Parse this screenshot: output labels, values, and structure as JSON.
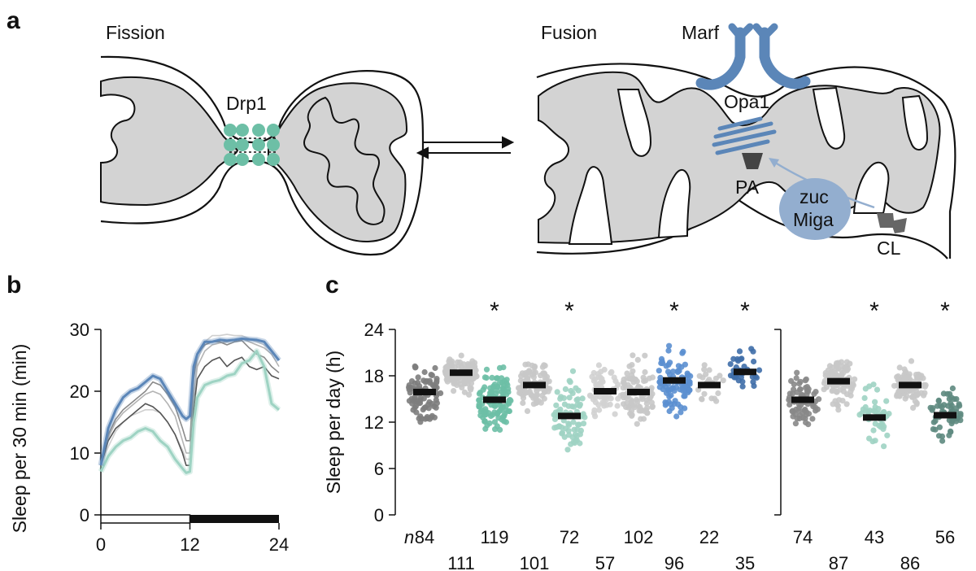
{
  "panel_a": {
    "letter": "a",
    "fission_label": "Fission",
    "fusion_label": "Fusion",
    "drp1_label": "Drp1",
    "marf_label": "Marf",
    "opa1_label": "Opa1",
    "pa_label": "PA",
    "zuc_label": "zuc",
    "miga_label": "Miga",
    "cl_label": "CL",
    "colors": {
      "drp1": "#6dbfa6",
      "marf": "#5b86b8",
      "miga": "#93aecf",
      "lipid": "#444444",
      "matrix": "#d3d3d3"
    }
  },
  "chart_data": [
    {
      "panel": "b",
      "type": "line",
      "ylabel": "Sleep per 30 min (min)",
      "xlim": [
        0,
        24
      ],
      "ylim": [
        0,
        30
      ],
      "xticks": [
        "0",
        "12",
        "24"
      ],
      "yticks": [
        "0",
        "10",
        "20",
        "30"
      ],
      "light_bar": {
        "light": [
          0,
          12
        ],
        "dark": [
          12,
          24
        ]
      },
      "series": [
        {
          "color": "#5b86b8",
          "x": [
            0,
            1,
            2,
            3,
            4,
            5,
            6,
            7,
            8,
            9,
            10,
            11,
            11.5,
            12,
            12.5,
            13,
            14,
            15,
            16,
            17,
            18,
            19,
            20,
            21,
            22,
            23,
            24
          ],
          "y": [
            8,
            14,
            17,
            19,
            20,
            20.5,
            21.5,
            22.5,
            22,
            20,
            18,
            16,
            15.5,
            16,
            24,
            26,
            28,
            28,
            28.3,
            28.2,
            28.3,
            28.5,
            28.4,
            28.3,
            28,
            26.5,
            25
          ]
        },
        {
          "color": "#9ed3c3",
          "x": [
            0,
            1,
            2,
            3,
            4,
            5,
            6,
            7,
            8,
            9,
            10,
            11,
            11.5,
            12,
            12.5,
            13,
            14,
            15,
            16,
            17,
            18,
            19,
            20,
            21,
            22,
            23,
            24
          ],
          "y": [
            7,
            9.5,
            11,
            12,
            12.5,
            13.5,
            14,
            13.5,
            12,
            11,
            9,
            7.5,
            6.8,
            7,
            15,
            19,
            21,
            21.5,
            21.8,
            22.5,
            22.8,
            24.5,
            25,
            26.5,
            24,
            18,
            17
          ]
        },
        {
          "color": "#555555",
          "x": [
            0,
            1,
            2,
            3,
            4,
            5,
            6,
            7,
            8,
            9,
            10,
            11,
            11.5,
            12,
            12.5,
            13,
            14,
            15,
            16,
            17,
            18,
            19,
            20,
            21,
            22,
            23,
            24
          ],
          "y": [
            8,
            12,
            14,
            15,
            16,
            17,
            18,
            17.5,
            16.5,
            15,
            13,
            10,
            8,
            8,
            17,
            22,
            24,
            25,
            25.5,
            24,
            25,
            25.5,
            24,
            23.5,
            24,
            22.5,
            22
          ]
        },
        {
          "color": "#8a8a8a",
          "x": [
            0,
            1,
            2,
            3,
            4,
            5,
            6,
            7,
            8,
            9,
            10,
            11,
            11.5,
            12,
            12.5,
            13,
            14,
            15,
            16,
            17,
            18,
            19,
            20,
            21,
            22,
            23,
            24
          ],
          "y": [
            8.5,
            13,
            15.5,
            17,
            18,
            19,
            20,
            21.5,
            21,
            19.5,
            17.5,
            14,
            12,
            12,
            22,
            26,
            27.5,
            28,
            28,
            27.5,
            28,
            28.2,
            27,
            26,
            25.5,
            24,
            23
          ]
        },
        {
          "color": "#b4b4b4",
          "x": [
            0,
            1,
            2,
            3,
            4,
            5,
            6,
            7,
            8,
            9,
            10,
            11,
            11.5,
            12,
            12.5,
            13,
            14,
            15,
            16,
            17,
            18,
            19,
            20,
            21,
            22,
            23,
            24
          ],
          "y": [
            8,
            12.5,
            15,
            16.5,
            17.5,
            18.5,
            19.5,
            20,
            19.5,
            18,
            16,
            12,
            10,
            10,
            19,
            24,
            26.5,
            27.5,
            27.8,
            28,
            28.3,
            28.5,
            28,
            27.5,
            27,
            26,
            24
          ]
        },
        {
          "color": "#cfcfcf",
          "x": [
            0,
            1,
            2,
            3,
            4,
            5,
            6,
            7,
            8,
            9,
            10,
            11,
            11.5,
            12,
            12.5,
            13,
            14,
            15,
            16,
            17,
            18,
            19,
            20,
            21,
            22,
            23,
            24
          ],
          "y": [
            8,
            11,
            13.5,
            15,
            16,
            16.5,
            17,
            17,
            16.5,
            15,
            13,
            10.5,
            9,
            9,
            18,
            25,
            28,
            29,
            29,
            29.2,
            29,
            29,
            28.5,
            28,
            27.5,
            26.5,
            25
          ]
        }
      ]
    },
    {
      "panel": "c",
      "type": "scatter",
      "ylabel": "Sleep per day (h)",
      "ylim": [
        0,
        24
      ],
      "yticks": [
        "0",
        "6",
        "12",
        "18",
        "24"
      ],
      "n_prefix": "n",
      "groups": [
        {
          "n": "84",
          "mean": 15.9,
          "sd": 2.8,
          "color": "#7d7d7d",
          "star": ""
        },
        {
          "n": "111",
          "mean": 18.4,
          "sd": 1.8,
          "color": "#c8c8c8",
          "star": ""
        },
        {
          "n": "119",
          "mean": 14.9,
          "sd": 3.2,
          "color": "#6dbfa6",
          "star": "*"
        },
        {
          "n": "101",
          "mean": 16.8,
          "sd": 2.4,
          "color": "#c8c8c8",
          "star": ""
        },
        {
          "n": "72",
          "mean": 12.8,
          "sd": 3.8,
          "color": "#9ed3c3",
          "star": "*"
        },
        {
          "n": "57",
          "mean": 16.0,
          "sd": 2.6,
          "color": "#d2d2d2",
          "star": ""
        },
        {
          "n": "102",
          "mean": 15.9,
          "sd": 3.2,
          "color": "#c8c8c8",
          "star": ""
        },
        {
          "n": "96",
          "mean": 17.4,
          "sd": 3.2,
          "color": "#5b8fd0",
          "star": "*"
        },
        {
          "n": "22",
          "mean": 16.8,
          "sd": 1.8,
          "color": "#c8c8c8",
          "star": ""
        },
        {
          "n": "35",
          "mean": 18.5,
          "sd": 1.9,
          "color": "#3f6ea8",
          "star": "*"
        },
        {
          "n": "74",
          "mean": 14.9,
          "sd": 2.4,
          "color": "#888888",
          "star": ""
        },
        {
          "n": "87",
          "mean": 17.3,
          "sd": 2.2,
          "color": "#c8c8c8",
          "star": ""
        },
        {
          "n": "43",
          "mean": 12.6,
          "sd": 2.8,
          "color": "#9ed3c3",
          "star": "*"
        },
        {
          "n": "86",
          "mean": 16.8,
          "sd": 1.9,
          "color": "#c8c8c8",
          "star": ""
        },
        {
          "n": "56",
          "mean": 12.9,
          "sd": 3.2,
          "color": "#5e8a80",
          "star": "*"
        }
      ]
    }
  ],
  "panel_letters": {
    "b": "b",
    "c": "c"
  }
}
